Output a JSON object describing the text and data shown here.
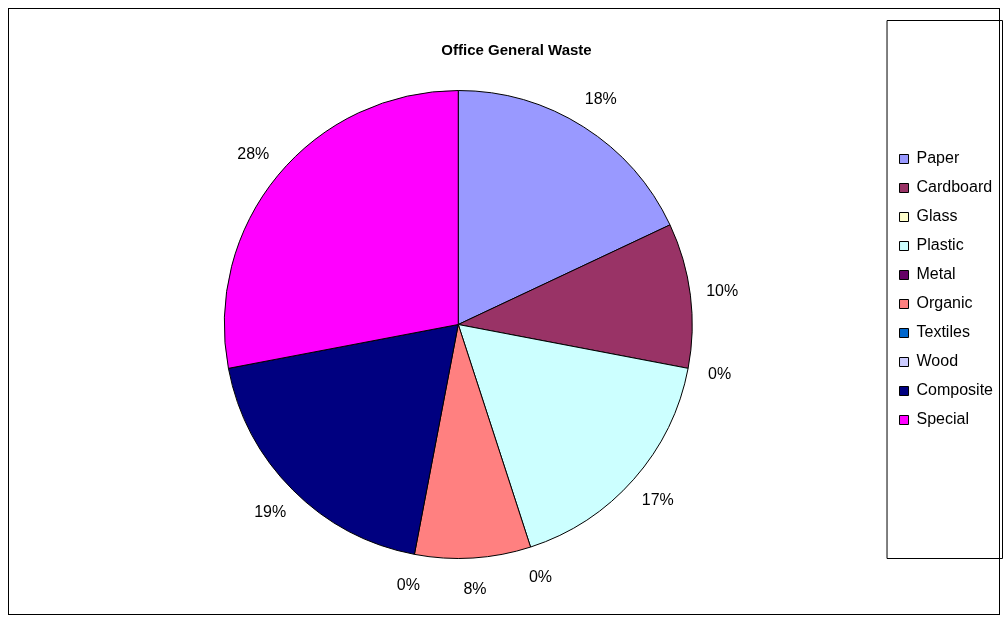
{
  "chart_data": {
    "type": "pie",
    "title": "Office General Waste",
    "categories": [
      "Paper",
      "Cardboard",
      "Glass",
      "Plastic",
      "Metal",
      "Organic",
      "Textiles",
      "Wood",
      "Composite",
      "Special"
    ],
    "values": [
      18,
      10,
      0,
      17,
      0,
      8,
      0,
      0,
      19,
      28
    ],
    "colors": [
      "#9999ff",
      "#993366",
      "#ffffcc",
      "#ccffff",
      "#660066",
      "#ff8080",
      "#0066cc",
      "#ccccff",
      "#000080",
      "#ff00ff"
    ],
    "value_labels": [
      "18%",
      "10%",
      "0%",
      "17%",
      "0%",
      "8%",
      "0%",
      null,
      "19%",
      "28%"
    ],
    "legend": "right"
  }
}
